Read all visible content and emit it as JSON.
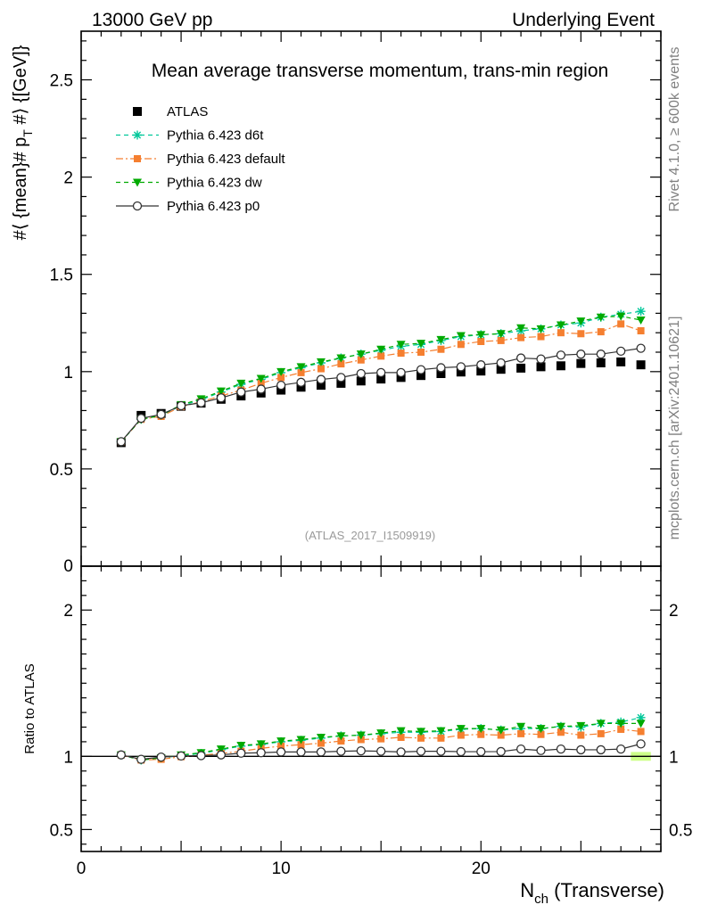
{
  "header": {
    "left": "13000 GeV pp",
    "right": "Underlying Event"
  },
  "side_labels": {
    "rivet": "Rivet 4.1.0, ≥ 600k events",
    "mcplots": "mcplots.cern.ch [arXiv:2401.10621]"
  },
  "chart_data": [
    {
      "type": "scatter",
      "panel": "main",
      "title": "Mean average transverse momentum, trans-min region",
      "ylabel": "#⟨ {mean}# p_T #⟩ {[GeV]}",
      "ylabel_parts": {
        "pre": "#⟨ {mean}# p",
        "sub": "T",
        "post": " #⟩ {[GeV]}"
      },
      "annotation": "(ATLAS_2017_I1509919)",
      "xlim": [
        0,
        29
      ],
      "ylim": [
        0,
        2.75
      ],
      "yticks": [
        0.5,
        1,
        1.5,
        2,
        2.5
      ],
      "ytick_labels": [
        "0.5",
        "1",
        "1.5",
        "2",
        "2.5"
      ],
      "y_zero_label": "0",
      "x": [
        2,
        3,
        4,
        5,
        6,
        7,
        8,
        9,
        10,
        11,
        12,
        13,
        14,
        15,
        16,
        17,
        18,
        19,
        20,
        21,
        22,
        23,
        24,
        25,
        26,
        27,
        28
      ],
      "series": [
        {
          "name": "ATLAS",
          "color": "#000000",
          "marker": "square",
          "line": "none",
          "values": [
            0.635,
            0.775,
            0.785,
            0.822,
            0.838,
            0.858,
            0.875,
            0.89,
            0.905,
            0.92,
            0.93,
            0.94,
            0.952,
            0.962,
            0.97,
            0.98,
            0.99,
            0.998,
            1.003,
            1.012,
            1.018,
            1.025,
            1.03,
            1.042,
            1.045,
            1.05,
            1.035
          ]
        },
        {
          "name": "Pythia 6.423 d6t",
          "color": "#00c89a",
          "marker": "star",
          "line": "dashed",
          "values": [
            0.64,
            0.755,
            0.775,
            0.825,
            0.855,
            0.895,
            0.935,
            0.96,
            0.995,
            1.02,
            1.045,
            1.07,
            1.09,
            1.11,
            1.13,
            1.14,
            1.16,
            1.18,
            1.19,
            1.195,
            1.21,
            1.22,
            1.24,
            1.25,
            1.28,
            1.295,
            1.31
          ]
        },
        {
          "name": "Pythia 6.423 default",
          "color": "#f57f30",
          "marker": "square-small",
          "line": "dashdot",
          "values": [
            0.64,
            0.755,
            0.77,
            0.82,
            0.845,
            0.875,
            0.905,
            0.94,
            0.97,
            0.995,
            1.015,
            1.04,
            1.06,
            1.08,
            1.095,
            1.1,
            1.115,
            1.14,
            1.155,
            1.16,
            1.175,
            1.18,
            1.2,
            1.195,
            1.205,
            1.245,
            1.21
          ]
        },
        {
          "name": "Pythia 6.423 dw",
          "color": "#00aa00",
          "marker": "triangle-down",
          "line": "dashed",
          "values": [
            0.64,
            0.755,
            0.775,
            0.83,
            0.86,
            0.9,
            0.94,
            0.965,
            1.0,
            1.025,
            1.05,
            1.07,
            1.09,
            1.115,
            1.14,
            1.145,
            1.165,
            1.185,
            1.19,
            1.195,
            1.225,
            1.22,
            1.24,
            1.26,
            1.28,
            1.285,
            1.265
          ]
        },
        {
          "name": "Pythia 6.423 p0",
          "color": "#333333",
          "marker": "circle-open",
          "line": "solid",
          "values": [
            0.64,
            0.76,
            0.78,
            0.825,
            0.84,
            0.865,
            0.895,
            0.91,
            0.93,
            0.945,
            0.96,
            0.97,
            0.99,
            0.995,
            0.995,
            1.01,
            1.02,
            1.025,
            1.035,
            1.045,
            1.07,
            1.065,
            1.085,
            1.09,
            1.09,
            1.105,
            1.12
          ]
        }
      ],
      "legend": [
        "ATLAS",
        "Pythia 6.423 d6t",
        "Pythia 6.423 default",
        "Pythia 6.423 dw",
        "Pythia 6.423 p0"
      ],
      "legend_location": "top-left"
    },
    {
      "type": "scatter",
      "panel": "ratio",
      "ylabel": "Ratio to ATLAS",
      "xlabel": "N_ch (Transverse)",
      "xlabel_parts": {
        "main": "N",
        "sub": "ch",
        "rest": " (Transverse)"
      },
      "xlim": [
        0,
        29
      ],
      "ylim": [
        0.35,
        2.3
      ],
      "yticks": [
        0.5,
        1,
        2
      ],
      "ytick_labels": [
        "0.5",
        "1",
        "2"
      ],
      "xticks": [
        0,
        10,
        20
      ],
      "xtick_labels": [
        "0",
        "10",
        "20"
      ],
      "reference_line": 1,
      "uncertainty_band": {
        "x": 28,
        "low": 0.97,
        "high": 1.03,
        "color": "#ccff88"
      },
      "x": [
        2,
        3,
        4,
        5,
        6,
        7,
        8,
        9,
        10,
        11,
        12,
        13,
        14,
        15,
        16,
        17,
        18,
        19,
        20,
        21,
        22,
        23,
        24,
        25,
        26,
        27,
        28
      ],
      "series": [
        {
          "name": "Pythia 6.423 d6t",
          "color": "#00c89a",
          "marker": "star",
          "line": "dashed",
          "values": [
            1.01,
            0.975,
            0.99,
            1.005,
            1.02,
            1.045,
            1.07,
            1.08,
            1.1,
            1.11,
            1.125,
            1.14,
            1.145,
            1.155,
            1.165,
            1.165,
            1.17,
            1.185,
            1.19,
            1.18,
            1.19,
            1.19,
            1.205,
            1.2,
            1.225,
            1.235,
            1.265
          ]
        },
        {
          "name": "Pythia 6.423 default",
          "color": "#f57f30",
          "marker": "square-small",
          "line": "dashdot",
          "values": [
            1.01,
            0.975,
            0.98,
            0.998,
            1.008,
            1.02,
            1.035,
            1.055,
            1.07,
            1.08,
            1.09,
            1.105,
            1.115,
            1.12,
            1.13,
            1.125,
            1.125,
            1.145,
            1.15,
            1.145,
            1.155,
            1.15,
            1.165,
            1.145,
            1.155,
            1.185,
            1.17
          ]
        },
        {
          "name": "Pythia 6.423 dw",
          "color": "#00aa00",
          "marker": "triangle-down",
          "line": "dashed",
          "values": [
            1.01,
            0.975,
            0.99,
            1.01,
            1.025,
            1.05,
            1.075,
            1.085,
            1.105,
            1.115,
            1.13,
            1.14,
            1.145,
            1.16,
            1.175,
            1.17,
            1.175,
            1.19,
            1.19,
            1.18,
            1.205,
            1.19,
            1.205,
            1.21,
            1.225,
            1.225,
            1.225
          ]
        },
        {
          "name": "Pythia 6.423 p0",
          "color": "#333333",
          "marker": "circle-open",
          "line": "solid",
          "values": [
            1.01,
            0.98,
            0.995,
            1.003,
            1.005,
            1.01,
            1.022,
            1.025,
            1.03,
            1.03,
            1.03,
            1.035,
            1.038,
            1.035,
            1.03,
            1.035,
            1.035,
            1.032,
            1.032,
            1.033,
            1.05,
            1.04,
            1.05,
            1.045,
            1.045,
            1.05,
            1.085
          ]
        }
      ]
    }
  ]
}
